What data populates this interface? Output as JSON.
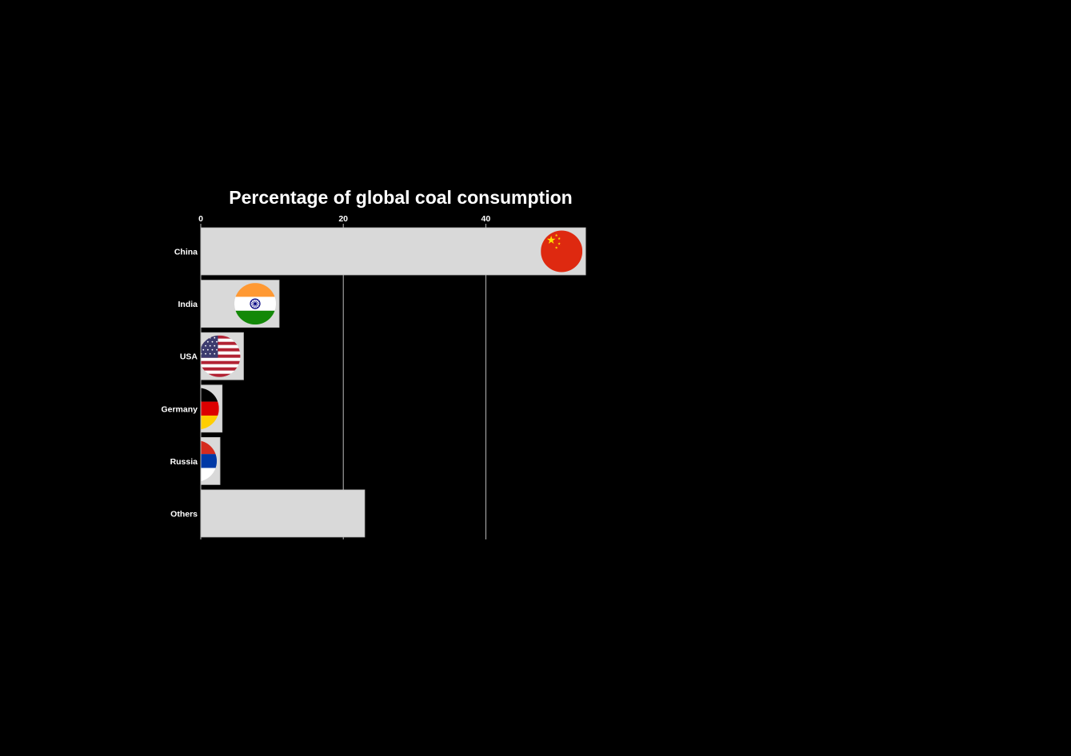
{
  "chart_data": {
    "type": "bar",
    "orientation": "horizontal",
    "title": "Percentage of global coal consumption",
    "xlabel": "",
    "ylabel": "",
    "categories": [
      "China",
      "India",
      "USA",
      "Germany",
      "Russia",
      "Others"
    ],
    "values": [
      54,
      11,
      6,
      3,
      2.7,
      23
    ],
    "xlim": [
      0,
      54
    ],
    "xticks": [
      0,
      20,
      40
    ],
    "grid": true,
    "legend": "none",
    "flags": [
      "china-flag-icon",
      "india-flag-icon",
      "usa-flag-icon",
      "germany-flag-icon",
      "russia-flag-icon",
      ""
    ],
    "colors": {
      "background": "#000000",
      "bar": "#d9d9d9",
      "bar_edge": "#bdbdbd",
      "grid": "#bbbbbb",
      "text": "#ffffff"
    }
  }
}
